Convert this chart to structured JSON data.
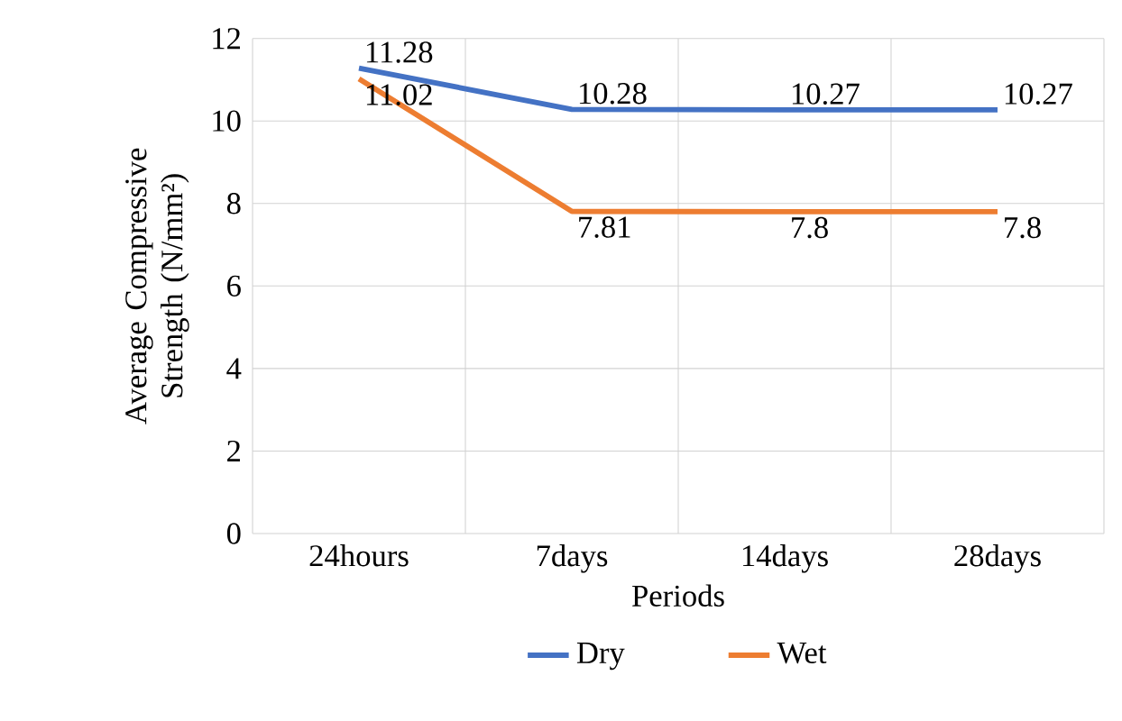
{
  "chart_data": {
    "type": "line",
    "xlabel": "Periods",
    "ylabel": "Average Compressive Strength (N/mm²)",
    "categories": [
      "24hours",
      "7days",
      "14days",
      "28days"
    ],
    "series": [
      {
        "name": "Dry",
        "color": "#4472c4",
        "values": [
          11.28,
          10.28,
          10.27,
          10.27
        ]
      },
      {
        "name": "Wet",
        "color": "#ed7d31",
        "values": [
          11.02,
          7.81,
          7.8,
          7.8
        ]
      }
    ],
    "ylim": [
      0,
      12
    ],
    "yticks": [
      0,
      2,
      4,
      6,
      8,
      10,
      12
    ],
    "grid": true,
    "legend": "bottom",
    "data_labels": true,
    "marker": "none",
    "line_style": "solid"
  }
}
